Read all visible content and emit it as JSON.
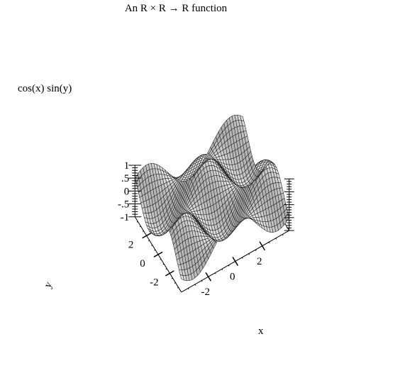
{
  "chart_data": {
    "type": "surface",
    "title": "An R × R → R function",
    "function": "cos(x) sin(y)",
    "xlabel": "x",
    "ylabel": "y",
    "zlabel": "cos(x) sin(y)",
    "xlim": [
      -4,
      4
    ],
    "ylim": [
      -4,
      4
    ],
    "zlim": [
      -1,
      1
    ],
    "x_ticks": [
      {
        "value": -2,
        "label": "-2"
      },
      {
        "value": 0,
        "label": "0"
      },
      {
        "value": 2,
        "label": "2"
      }
    ],
    "y_ticks": [
      {
        "value": -2,
        "label": "-2"
      },
      {
        "value": 0,
        "label": "0"
      },
      {
        "value": 2,
        "label": "2"
      }
    ],
    "z_ticks": [
      {
        "value": 1,
        "label": "1"
      },
      {
        "value": 0.5,
        "label": ".5"
      },
      {
        "value": 0,
        "label": "0"
      },
      {
        "value": -0.5,
        "label": "-.5"
      },
      {
        "value": -1,
        "label": "-1"
      }
    ],
    "grid_samples": 40,
    "colors": {
      "surface_base": "#cfcfcf",
      "mesh": "#222222",
      "axis": "#000000"
    }
  }
}
